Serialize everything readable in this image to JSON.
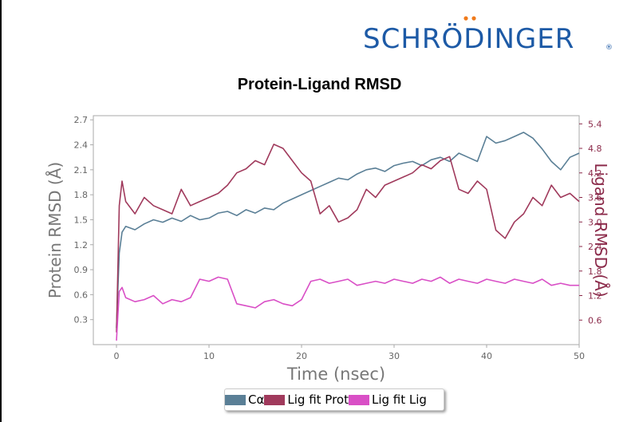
{
  "logo": {
    "text": "SCHRÖDINGER",
    "registered": "®"
  },
  "chart_data": {
    "type": "line",
    "title": "Protein-Ligand RMSD",
    "xlabel": "Time (nsec)",
    "ylabel": "Protein RMSD (Å)",
    "y2label": "Ligand RMSD (Å)",
    "xlim": [
      -2.5,
      50
    ],
    "ylim": [
      0.0,
      2.75
    ],
    "y2lim": [
      0.0,
      5.6
    ],
    "xticks": [
      0,
      10,
      20,
      30,
      40,
      50
    ],
    "xtick_labels": [
      "0",
      "10",
      "20",
      "30",
      "40",
      "50"
    ],
    "yticks": [
      0.3,
      0.6,
      0.9,
      1.2,
      1.5,
      1.8,
      2.1,
      2.4,
      2.7
    ],
    "ytick_labels": [
      "0.3",
      "0.6",
      "0.9",
      "1.2",
      "1.5",
      "1.8",
      "2.1",
      "2.4",
      "2.7"
    ],
    "y2ticks": [
      0.6,
      1.2,
      1.8,
      2.4,
      3.0,
      3.6,
      4.2,
      4.8,
      5.4
    ],
    "y2tick_labels": [
      "0.6",
      "1.2",
      "1.8",
      "2.4",
      "3.0",
      "3.6",
      "4.2",
      "4.8",
      "5.4"
    ],
    "grid": false,
    "legend_position": "bottom-center",
    "series": [
      {
        "name": "Cα",
        "axis": "left",
        "color": "#5a7f96",
        "x": [
          0,
          0.3,
          0.6,
          1,
          2,
          3,
          4,
          5,
          6,
          7,
          8,
          9,
          10,
          11,
          12,
          13,
          14,
          15,
          16,
          17,
          18,
          19,
          20,
          21,
          22,
          23,
          24,
          25,
          26,
          27,
          28,
          29,
          30,
          31,
          32,
          33,
          34,
          35,
          36,
          37,
          38,
          39,
          40,
          41,
          42,
          43,
          44,
          45,
          46,
          47,
          48,
          49,
          50
        ],
        "y": [
          0.2,
          1.1,
          1.35,
          1.42,
          1.38,
          1.45,
          1.5,
          1.47,
          1.52,
          1.48,
          1.55,
          1.5,
          1.52,
          1.58,
          1.6,
          1.55,
          1.62,
          1.58,
          1.64,
          1.62,
          1.7,
          1.75,
          1.8,
          1.85,
          1.9,
          1.95,
          2.0,
          1.98,
          2.05,
          2.1,
          2.12,
          2.08,
          2.15,
          2.18,
          2.2,
          2.15,
          2.22,
          2.25,
          2.2,
          2.3,
          2.25,
          2.2,
          2.5,
          2.42,
          2.45,
          2.5,
          2.55,
          2.48,
          2.35,
          2.2,
          2.1,
          2.25,
          2.3
        ]
      },
      {
        "name": "Lig fit Prot",
        "axis": "right",
        "color": "#a03a5c",
        "x": [
          0,
          0.3,
          0.6,
          1,
          2,
          3,
          4,
          5,
          6,
          7,
          8,
          9,
          10,
          11,
          12,
          13,
          14,
          15,
          16,
          17,
          18,
          19,
          20,
          21,
          22,
          23,
          24,
          25,
          26,
          27,
          28,
          29,
          30,
          31,
          32,
          33,
          34,
          35,
          36,
          37,
          38,
          39,
          40,
          41,
          42,
          43,
          44,
          45,
          46,
          47,
          48,
          49,
          50
        ],
        "y": [
          0.3,
          3.4,
          4.0,
          3.5,
          3.2,
          3.6,
          3.4,
          3.3,
          3.2,
          3.8,
          3.4,
          3.5,
          3.6,
          3.7,
          3.9,
          4.2,
          4.3,
          4.5,
          4.4,
          4.9,
          4.8,
          4.5,
          4.2,
          4.0,
          3.2,
          3.4,
          3.0,
          3.1,
          3.3,
          3.8,
          3.6,
          3.9,
          4.0,
          4.1,
          4.2,
          4.4,
          4.3,
          4.5,
          4.6,
          3.8,
          3.7,
          4.0,
          3.8,
          2.8,
          2.6,
          3.0,
          3.2,
          3.6,
          3.4,
          3.9,
          3.6,
          3.7,
          3.5
        ]
      },
      {
        "name": "Lig fit Lig",
        "axis": "right",
        "color": "#d94fc6",
        "x": [
          0,
          0.3,
          0.6,
          1,
          2,
          3,
          4,
          5,
          6,
          7,
          8,
          9,
          10,
          11,
          12,
          13,
          14,
          15,
          16,
          17,
          18,
          19,
          20,
          21,
          22,
          23,
          24,
          25,
          26,
          27,
          28,
          29,
          30,
          31,
          32,
          33,
          34,
          35,
          36,
          37,
          38,
          39,
          40,
          41,
          42,
          43,
          44,
          45,
          46,
          47,
          48,
          49,
          50
        ],
        "y": [
          0.1,
          1.3,
          1.4,
          1.15,
          1.05,
          1.1,
          1.2,
          1.0,
          1.1,
          1.05,
          1.15,
          1.6,
          1.55,
          1.65,
          1.6,
          1.0,
          0.95,
          0.9,
          1.05,
          1.1,
          1.0,
          0.95,
          1.1,
          1.55,
          1.6,
          1.5,
          1.55,
          1.6,
          1.45,
          1.5,
          1.55,
          1.5,
          1.6,
          1.55,
          1.5,
          1.6,
          1.55,
          1.65,
          1.5,
          1.6,
          1.55,
          1.5,
          1.6,
          1.55,
          1.5,
          1.6,
          1.55,
          1.5,
          1.6,
          1.45,
          1.5,
          1.45,
          1.45
        ]
      }
    ]
  }
}
